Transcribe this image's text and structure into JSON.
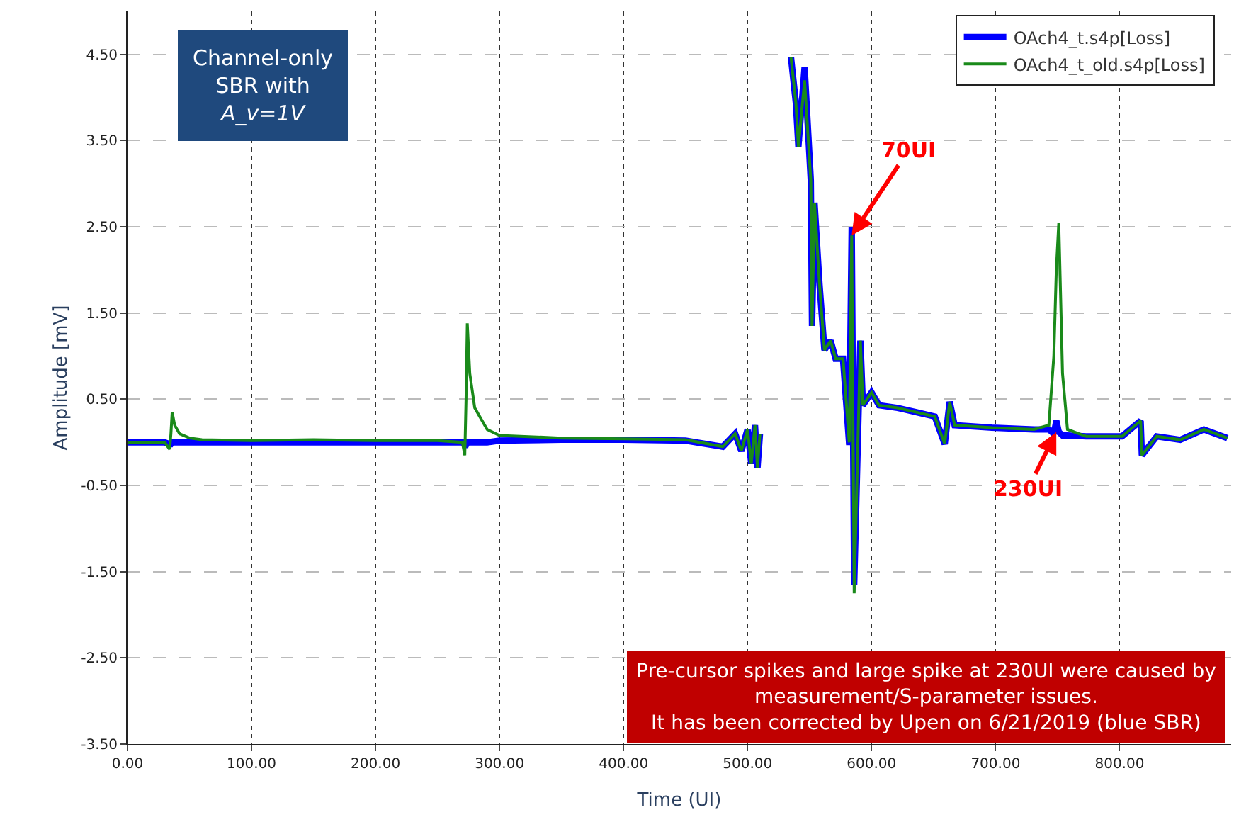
{
  "chart_data": {
    "type": "line",
    "xlabel": "Time (UI)",
    "ylabel": "Amplitude [mV]",
    "x": [
      0,
      30,
      34,
      35,
      36,
      38,
      42,
      50,
      60,
      100,
      150,
      200,
      250,
      270,
      272,
      273,
      274,
      276,
      280,
      290,
      300,
      350,
      400,
      450,
      480,
      490,
      495,
      500,
      503,
      506,
      508,
      510,
      511,
      512,
      532,
      535,
      539,
      541,
      546,
      551,
      552,
      554,
      558,
      562,
      567,
      571,
      577,
      582,
      584,
      586,
      591,
      593,
      600,
      606,
      621,
      636,
      651,
      659,
      663,
      667,
      697,
      731,
      743,
      747,
      749,
      751,
      754,
      758,
      773,
      796,
      802,
      817,
      818,
      830,
      849,
      868,
      887
    ],
    "series": [
      {
        "name": "OAch4_t.s4p[Loss]",
        "color": "#0000ff",
        "values": [
          0,
          0,
          -0.02,
          -0.02,
          0,
          0,
          0,
          0,
          0,
          0,
          0,
          0,
          0,
          0,
          -0.03,
          -0.03,
          0,
          0,
          0,
          0,
          0.02,
          0.03,
          0.03,
          0.02,
          -0.05,
          0.1,
          -0.1,
          0.15,
          -0.25,
          0.2,
          -0.3,
          0.1,
          null,
          null,
          null,
          4.47,
          3.93,
          3.43,
          4.35,
          3.04,
          1.35,
          2.78,
          1.84,
          1.07,
          1.18,
          0.97,
          0.97,
          -0.03,
          2.5,
          -1.65,
          1.18,
          0.43,
          0.58,
          0.43,
          0.4,
          0.35,
          0.3,
          -0.02,
          0.47,
          0.2,
          0.17,
          0.15,
          0.15,
          0.1,
          0.25,
          0.12,
          0.08,
          0.08,
          0.07,
          0.07,
          0.07,
          0.25,
          -0.15,
          0.07,
          0.03,
          0.15,
          0.05
        ]
      },
      {
        "name": "OAch4_t_old.s4p[Loss]",
        "color": "#1a8a1a",
        "values": [
          0,
          0,
          -0.08,
          0.1,
          0.35,
          0.2,
          0.1,
          0.05,
          0.03,
          0.02,
          0.03,
          0.02,
          0.02,
          0.0,
          -0.15,
          0.5,
          1.38,
          0.8,
          0.4,
          0.15,
          0.08,
          0.05,
          0.04,
          0.03,
          -0.05,
          0.1,
          -0.1,
          0.15,
          -0.25,
          0.2,
          -0.3,
          0.1,
          null,
          null,
          null,
          4.47,
          3.93,
          3.43,
          4.2,
          3.04,
          1.35,
          2.78,
          1.84,
          1.07,
          1.18,
          0.97,
          0.97,
          0.0,
          2.4,
          -1.75,
          1.18,
          0.43,
          0.58,
          0.43,
          0.4,
          0.35,
          0.3,
          -0.02,
          0.47,
          0.2,
          0.17,
          0.15,
          0.2,
          1.0,
          2.0,
          2.55,
          0.8,
          0.15,
          0.07,
          0.07,
          0.07,
          0.25,
          -0.15,
          0.07,
          0.03,
          0.15,
          0.05
        ]
      }
    ],
    "xlim": [
      0,
      890
    ],
    "ylim": [
      -3.5,
      5.0
    ],
    "xticks": [
      {
        "value": 0,
        "label": "0.00"
      },
      {
        "value": 100,
        "label": "100.00"
      },
      {
        "value": 200,
        "label": "200.00"
      },
      {
        "value": 300,
        "label": "300.00"
      },
      {
        "value": 400,
        "label": "400.00"
      },
      {
        "value": 500,
        "label": "500.00"
      },
      {
        "value": 600,
        "label": "600.00"
      },
      {
        "value": 700,
        "label": "700.00"
      },
      {
        "value": 800,
        "label": "800.00"
      }
    ],
    "yticks": [
      {
        "value": -3.5,
        "label": "-3.50"
      },
      {
        "value": -2.5,
        "label": "-2.50"
      },
      {
        "value": -1.5,
        "label": "-1.50"
      },
      {
        "value": -0.5,
        "label": "-0.50"
      },
      {
        "value": 0.5,
        "label": "0.50"
      },
      {
        "value": 1.5,
        "label": "1.50"
      },
      {
        "value": 2.5,
        "label": "2.50"
      },
      {
        "value": 3.5,
        "label": "3.50"
      },
      {
        "value": 4.5,
        "label": "4.50"
      }
    ],
    "grid": true,
    "legend": "top right",
    "marker": "none",
    "line_style": "solid",
    "annotations": [
      "Channel-only\nSBR with\nA_v=1V",
      {
        "text": "70UI",
        "x": 584,
        "y": 2.4
      },
      {
        "text": "230UI",
        "x": 749,
        "y": 0.12
      },
      "Pre-cursor spikes and large spike at 230UI were caused by\nmeasurement/S-parameter issues.\nIt has been corrected by Upen on 6/21/2019 (blue SBR)"
    ]
  }
}
